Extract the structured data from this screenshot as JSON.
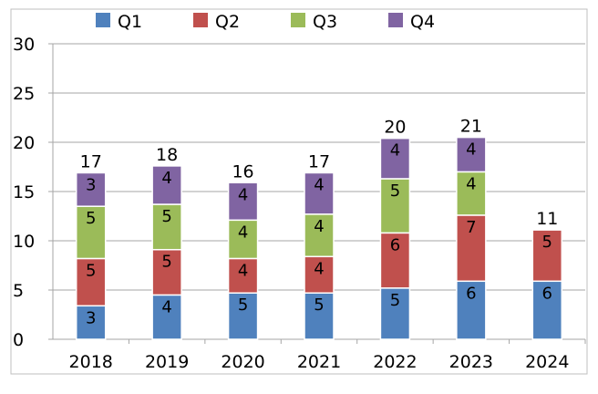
{
  "chart_data": {
    "type": "bar",
    "stacked": true,
    "title": "",
    "xlabel": "",
    "ylabel": "",
    "ylim": [
      0,
      30
    ],
    "yticks": [
      0,
      5,
      10,
      15,
      20,
      25,
      30
    ],
    "grid": true,
    "legend_position": "top",
    "categories": [
      "2018",
      "2019",
      "2020",
      "2021",
      "2022",
      "2023",
      "2024"
    ],
    "series": [
      {
        "name": "Q1",
        "color": "#4f81bd",
        "values": [
          3.4,
          4.5,
          4.7,
          4.7,
          5.2,
          5.9,
          5.9
        ],
        "labels": [
          "3",
          "4",
          "5",
          "5",
          "5",
          "6",
          "6"
        ]
      },
      {
        "name": "Q2",
        "color": "#c0504d",
        "values": [
          4.8,
          4.6,
          3.5,
          3.7,
          5.6,
          6.7,
          5.2
        ],
        "labels": [
          "5",
          "5",
          "4",
          "4",
          "6",
          "7",
          "5"
        ]
      },
      {
        "name": "Q3",
        "color": "#9bbb59",
        "values": [
          5.3,
          4.6,
          3.9,
          4.3,
          5.5,
          4.4,
          null
        ],
        "labels": [
          "5",
          "5",
          "4",
          "4",
          "5",
          "4",
          ""
        ]
      },
      {
        "name": "Q4",
        "color": "#8064a2",
        "values": [
          3.4,
          3.9,
          3.8,
          4.2,
          4.1,
          3.5,
          null
        ],
        "labels": [
          "3",
          "4",
          "4",
          "4",
          "4",
          "4",
          ""
        ]
      }
    ],
    "totals": [
      "17",
      "18",
      "16",
      "17",
      "20",
      "21",
      "11"
    ]
  }
}
